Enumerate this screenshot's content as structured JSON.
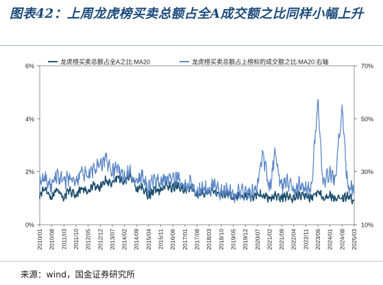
{
  "title": "图表42：上周龙虎榜买卖总额占全A成交额之比同样小幅上升",
  "source": "来源：wind，国金证券研究所",
  "chart_data": {
    "type": "line",
    "x_ticks": [
      "2010/01",
      "2010/08",
      "2011/03",
      "2011/10",
      "2012/05",
      "2012/12",
      "2013/07",
      "2014/02",
      "2014/09",
      "2015/04",
      "2015/11",
      "2016/06",
      "2017/01",
      "2017/08",
      "2018/03",
      "2018/10",
      "2019/05",
      "2019/12",
      "2020/07",
      "2021/02",
      "2021/09",
      "2022/04",
      "2022/11",
      "2023/06",
      "2024/01",
      "2024/08",
      "2025/03"
    ],
    "y_left": {
      "ticks": [
        "0%",
        "2%",
        "4%",
        "6%"
      ],
      "ylim": [
        0,
        6
      ]
    },
    "y_right": {
      "ticks": [
        "10%",
        "30%",
        "50%",
        "70%"
      ],
      "ylim": [
        10,
        70
      ]
    },
    "legend_position": "top",
    "colors": {
      "left": "#1d4e6e",
      "right": "#5b87c5"
    },
    "series": [
      {
        "name": "龙虎榜买卖总额占全A之比:MA20",
        "axis": "left",
        "points": [
          [
            "2010/01",
            1.1
          ],
          [
            "2010/04",
            1.4
          ],
          [
            "2010/08",
            1.0
          ],
          [
            "2010/11",
            1.4
          ],
          [
            "2011/03",
            1.0
          ],
          [
            "2011/06",
            1.3
          ],
          [
            "2011/10",
            1.1
          ],
          [
            "2012/01",
            1.4
          ],
          [
            "2012/05",
            1.2
          ],
          [
            "2012/08",
            1.5
          ],
          [
            "2012/12",
            1.4
          ],
          [
            "2013/03",
            1.7
          ],
          [
            "2013/07",
            1.5
          ],
          [
            "2013/10",
            1.8
          ],
          [
            "2014/02",
            1.6
          ],
          [
            "2014/05",
            1.9
          ],
          [
            "2014/09",
            1.3
          ],
          [
            "2014/12",
            1.4
          ],
          [
            "2015/04",
            1.1
          ],
          [
            "2015/07",
            1.3
          ],
          [
            "2015/11",
            1.3
          ],
          [
            "2016/02",
            1.5
          ],
          [
            "2016/06",
            1.4
          ],
          [
            "2016/09",
            1.5
          ],
          [
            "2017/01",
            1.3
          ],
          [
            "2017/04",
            1.4
          ],
          [
            "2017/08",
            1.1
          ],
          [
            "2017/11",
            1.2
          ],
          [
            "2018/03",
            1.2
          ],
          [
            "2018/06",
            1.3
          ],
          [
            "2018/10",
            1.1
          ],
          [
            "2019/01",
            1.2
          ],
          [
            "2019/05",
            1.0
          ],
          [
            "2019/08",
            1.1
          ],
          [
            "2019/12",
            1.1
          ],
          [
            "2020/04",
            1.0
          ],
          [
            "2020/07",
            1.2
          ],
          [
            "2020/10",
            1.1
          ],
          [
            "2021/02",
            1.0
          ],
          [
            "2021/05",
            1.1
          ],
          [
            "2021/09",
            1.0
          ],
          [
            "2021/12",
            1.1
          ],
          [
            "2022/04",
            1.0
          ],
          [
            "2022/07",
            1.1
          ],
          [
            "2022/11",
            1.1
          ],
          [
            "2023/02",
            1.0
          ],
          [
            "2023/06",
            1.3
          ],
          [
            "2023/09",
            1.0
          ],
          [
            "2024/01",
            1.1
          ],
          [
            "2024/04",
            1.0
          ],
          [
            "2024/08",
            1.0
          ],
          [
            "2024/11",
            1.1
          ],
          [
            "2025/03",
            0.9
          ]
        ]
      },
      {
        "name": "龙虎榜买卖总额占上榜标的成交额之比:MA20:右轴",
        "axis": "right",
        "points": [
          [
            "2010/01",
            25
          ],
          [
            "2010/04",
            28
          ],
          [
            "2010/08",
            24
          ],
          [
            "2010/11",
            29
          ],
          [
            "2011/03",
            26
          ],
          [
            "2011/06",
            28
          ],
          [
            "2011/10",
            25
          ],
          [
            "2012/01",
            30
          ],
          [
            "2012/05",
            28
          ],
          [
            "2012/08",
            31
          ],
          [
            "2012/12",
            32
          ],
          [
            "2013/03",
            35
          ],
          [
            "2013/07",
            30
          ],
          [
            "2013/10",
            32
          ],
          [
            "2014/02",
            28
          ],
          [
            "2014/05",
            30
          ],
          [
            "2014/09",
            26
          ],
          [
            "2014/12",
            28
          ],
          [
            "2015/04",
            24
          ],
          [
            "2015/07",
            27
          ],
          [
            "2015/11",
            26
          ],
          [
            "2016/02",
            28
          ],
          [
            "2016/06",
            27
          ],
          [
            "2016/09",
            28
          ],
          [
            "2017/01",
            24
          ],
          [
            "2017/04",
            26
          ],
          [
            "2017/08",
            22
          ],
          [
            "2017/11",
            24
          ],
          [
            "2018/03",
            23
          ],
          [
            "2018/06",
            25
          ],
          [
            "2018/10",
            22
          ],
          [
            "2019/01",
            24
          ],
          [
            "2019/05",
            21
          ],
          [
            "2019/08",
            23
          ],
          [
            "2019/12",
            22
          ],
          [
            "2020/04",
            22
          ],
          [
            "2020/07",
            24
          ],
          [
            "2020/10",
            38
          ],
          [
            "2021/02",
            23
          ],
          [
            "2021/05",
            37
          ],
          [
            "2021/09",
            24
          ],
          [
            "2021/12",
            27
          ],
          [
            "2022/04",
            23
          ],
          [
            "2022/07",
            25
          ],
          [
            "2022/11",
            24
          ],
          [
            "2023/02",
            23
          ],
          [
            "2023/06",
            56
          ],
          [
            "2023/09",
            26
          ],
          [
            "2024/01",
            30
          ],
          [
            "2024/04",
            27
          ],
          [
            "2024/08",
            55
          ],
          [
            "2024/11",
            25
          ],
          [
            "2025/03",
            23
          ]
        ]
      }
    ]
  }
}
